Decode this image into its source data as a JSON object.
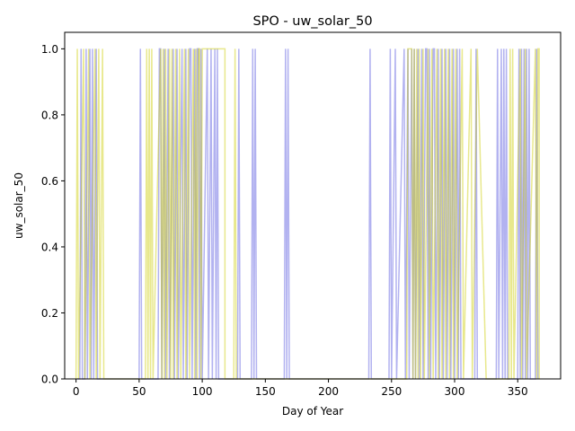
{
  "chart_data": {
    "type": "line",
    "title": "SPO - uw_solar_50",
    "xlabel": "Day of Year",
    "ylabel": "uw_solar_50",
    "xlim": [
      -9,
      384
    ],
    "ylim": [
      0.0,
      1.05
    ],
    "x_ticks": [
      0,
      50,
      100,
      150,
      200,
      250,
      300,
      350
    ],
    "y_ticks": [
      0.0,
      0.2,
      0.4,
      0.6,
      0.8,
      1.0
    ],
    "x_tick_labels": [
      "0",
      "50",
      "100",
      "150",
      "200",
      "250",
      "300",
      "350"
    ],
    "y_tick_labels": [
      "0.0",
      "0.2",
      "0.4",
      "0.6",
      "0.8",
      "1.0"
    ],
    "grid": false,
    "legend": "none",
    "series": [
      {
        "color": "#0000cc",
        "opacity": 0.3,
        "points": [
          [
            1,
            0
          ],
          [
            3,
            0
          ],
          [
            4,
            1
          ],
          [
            5,
            0
          ],
          [
            7,
            0
          ],
          [
            8,
            1
          ],
          [
            9,
            0
          ],
          [
            11,
            1
          ],
          [
            12,
            0
          ],
          [
            13,
            1
          ],
          [
            14,
            0
          ],
          [
            16,
            1
          ],
          [
            17,
            0
          ],
          [
            22,
            0
          ],
          [
            50,
            0
          ],
          [
            51,
            1
          ],
          [
            52,
            0
          ],
          [
            65,
            0
          ],
          [
            66,
            1
          ],
          [
            67,
            1
          ],
          [
            68,
            0
          ],
          [
            70,
            1
          ],
          [
            71,
            0
          ],
          [
            73,
            1
          ],
          [
            74,
            0
          ],
          [
            77,
            1
          ],
          [
            78,
            0
          ],
          [
            80,
            1
          ],
          [
            81,
            0
          ],
          [
            84,
            1
          ],
          [
            85,
            0
          ],
          [
            87,
            1
          ],
          [
            88,
            0
          ],
          [
            90,
            1
          ],
          [
            91,
            1
          ],
          [
            92,
            0
          ],
          [
            94,
            1
          ],
          [
            95,
            0
          ],
          [
            96,
            1
          ],
          [
            97,
            1
          ],
          [
            98,
            0
          ],
          [
            99,
            1
          ],
          [
            100,
            0
          ],
          [
            104,
            1
          ],
          [
            105,
            0
          ],
          [
            107,
            1
          ],
          [
            108,
            0
          ],
          [
            110,
            1
          ],
          [
            111,
            0
          ],
          [
            112,
            1
          ],
          [
            113,
            0
          ],
          [
            128,
            0
          ],
          [
            129,
            1
          ],
          [
            130,
            0
          ],
          [
            139,
            0
          ],
          [
            140,
            1
          ],
          [
            141,
            0
          ],
          [
            142,
            1
          ],
          [
            143,
            0
          ],
          [
            165,
            0
          ],
          [
            166,
            1
          ],
          [
            167,
            0
          ],
          [
            168,
            1
          ],
          [
            169,
            0
          ],
          [
            232,
            0
          ],
          [
            233,
            1
          ],
          [
            234,
            0
          ],
          [
            248,
            0
          ],
          [
            249,
            1
          ],
          [
            250,
            0
          ],
          [
            253,
            1
          ],
          [
            254,
            0
          ],
          [
            260,
            1
          ],
          [
            261,
            0
          ],
          [
            263,
            1
          ],
          [
            264,
            0
          ],
          [
            266,
            1
          ],
          [
            267,
            0
          ],
          [
            268,
            1
          ],
          [
            269,
            0
          ],
          [
            271,
            1
          ],
          [
            272,
            0
          ],
          [
            274,
            1
          ],
          [
            275,
            0
          ],
          [
            277,
            1
          ],
          [
            278,
            1
          ],
          [
            279,
            0
          ],
          [
            280,
            1
          ],
          [
            281,
            0
          ],
          [
            283,
            1
          ],
          [
            284,
            1
          ],
          [
            285,
            0
          ],
          [
            287,
            1
          ],
          [
            288,
            0
          ],
          [
            290,
            1
          ],
          [
            291,
            0
          ],
          [
            293,
            1
          ],
          [
            294,
            0
          ],
          [
            296,
            1
          ],
          [
            297,
            0
          ],
          [
            299,
            1
          ],
          [
            300,
            0
          ],
          [
            302,
            1
          ],
          [
            303,
            0
          ],
          [
            304,
            1
          ],
          [
            305,
            0
          ],
          [
            316,
            0
          ],
          [
            317,
            1
          ],
          [
            318,
            0
          ],
          [
            333,
            0
          ],
          [
            334,
            1
          ],
          [
            335,
            0
          ],
          [
            337,
            1
          ],
          [
            338,
            0
          ],
          [
            339,
            1
          ],
          [
            340,
            0
          ],
          [
            341,
            1
          ],
          [
            342,
            0
          ],
          [
            350,
            0
          ],
          [
            351,
            1
          ],
          [
            352,
            0
          ],
          [
            353,
            1
          ],
          [
            354,
            0
          ],
          [
            355,
            1
          ],
          [
            356,
            0
          ],
          [
            357,
            1
          ],
          [
            358,
            0
          ],
          [
            359,
            1
          ],
          [
            360,
            0
          ],
          [
            364,
            0
          ],
          [
            365,
            1
          ],
          [
            366,
            0
          ]
        ]
      },
      {
        "color": "#cccc00",
        "opacity": 0.45,
        "points": [
          [
            0,
            0
          ],
          [
            1,
            1
          ],
          [
            2,
            0
          ],
          [
            6,
            1
          ],
          [
            7,
            0
          ],
          [
            10,
            1
          ],
          [
            11,
            0
          ],
          [
            15,
            1
          ],
          [
            16,
            0
          ],
          [
            18,
            1
          ],
          [
            19,
            0
          ],
          [
            21,
            1
          ],
          [
            22,
            0
          ],
          [
            55,
            0
          ],
          [
            56,
            1
          ],
          [
            57,
            0
          ],
          [
            58,
            1
          ],
          [
            59,
            0
          ],
          [
            60,
            1
          ],
          [
            61,
            0
          ],
          [
            67,
            1
          ],
          [
            68,
            0
          ],
          [
            69,
            1
          ],
          [
            70,
            0
          ],
          [
            71,
            1
          ],
          [
            72,
            0
          ],
          [
            74,
            1
          ],
          [
            75,
            0
          ],
          [
            76,
            1
          ],
          [
            77,
            0
          ],
          [
            79,
            1
          ],
          [
            80,
            0
          ],
          [
            82,
            1
          ],
          [
            83,
            0
          ],
          [
            86,
            1
          ],
          [
            87,
            0
          ],
          [
            89,
            1
          ],
          [
            90,
            0
          ],
          [
            93,
            1
          ],
          [
            94,
            0
          ],
          [
            95,
            1
          ],
          [
            96,
            0
          ],
          [
            97,
            1
          ],
          [
            98,
            1
          ],
          [
            99,
            0
          ],
          [
            100,
            1
          ],
          [
            101,
            1
          ],
          [
            110,
            1
          ],
          [
            118,
            1
          ],
          [
            118,
            0
          ],
          [
            125,
            0
          ],
          [
            126,
            1
          ],
          [
            127,
            0
          ],
          [
            262,
            0
          ],
          [
            263,
            1
          ],
          [
            264,
            1
          ],
          [
            266,
            1
          ],
          [
            267,
            0
          ],
          [
            268,
            1
          ],
          [
            269,
            0
          ],
          [
            270,
            1
          ],
          [
            271,
            0
          ],
          [
            272,
            1
          ],
          [
            273,
            0
          ],
          [
            275,
            1
          ],
          [
            276,
            0
          ],
          [
            279,
            1
          ],
          [
            280,
            0
          ],
          [
            282,
            1
          ],
          [
            283,
            0
          ],
          [
            286,
            1
          ],
          [
            287,
            0
          ],
          [
            289,
            1
          ],
          [
            290,
            0
          ],
          [
            292,
            1
          ],
          [
            293,
            0
          ],
          [
            295,
            1
          ],
          [
            296,
            0
          ],
          [
            298,
            1
          ],
          [
            299,
            0
          ],
          [
            301,
            1
          ],
          [
            302,
            0
          ],
          [
            306,
            1
          ],
          [
            307,
            0
          ],
          [
            313,
            1
          ],
          [
            314,
            0
          ],
          [
            318,
            1
          ],
          [
            325,
            0
          ],
          [
            343,
            0
          ],
          [
            344,
            1
          ],
          [
            345,
            0
          ],
          [
            346,
            1
          ],
          [
            347,
            0
          ],
          [
            352,
            1
          ],
          [
            353,
            0
          ],
          [
            356,
            1
          ],
          [
            357,
            0
          ],
          [
            364,
            1
          ],
          [
            365,
            0
          ],
          [
            366,
            1
          ],
          [
            367,
            1
          ],
          [
            367,
            0
          ]
        ]
      }
    ]
  }
}
